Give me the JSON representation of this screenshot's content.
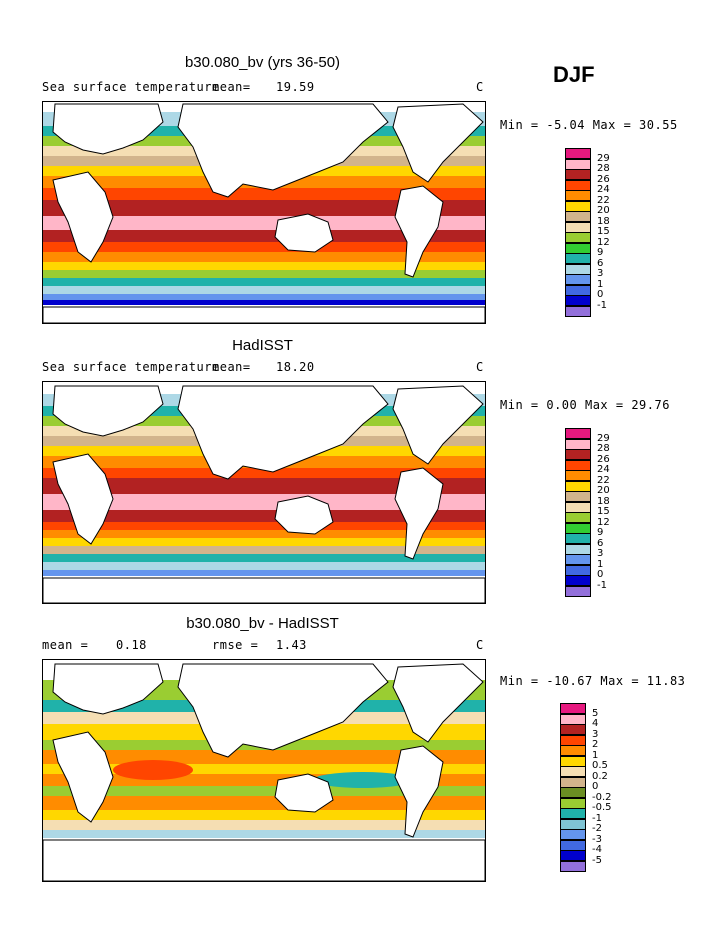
{
  "season": "DJF",
  "panels": [
    {
      "title": "b30.080_bv (yrs 36-50)",
      "left_label": "Sea surface temperature",
      "mean_label": "mean=",
      "mean_value": "19.59",
      "units": "C",
      "minmax_text": "Min =   -5.04 Max =   30.55",
      "levels": [
        "29",
        "28",
        "26",
        "24",
        "22",
        "20",
        "18",
        "15",
        "12",
        "9",
        "6",
        "3",
        "1",
        "0",
        "-1"
      ],
      "colors": [
        "#e6197f",
        "#ffb6c8",
        "#b22222",
        "#ff4500",
        "#ff8c00",
        "#ffd700",
        "#d2b48c",
        "#f5deb3",
        "#9acd32",
        "#32cd32",
        "#20b2aa",
        "#add8e6",
        "#6495ed",
        "#4169e1",
        "#0000cd",
        "#9370db"
      ]
    },
    {
      "title": "HadISST",
      "left_label": "Sea surface temperature",
      "mean_label": "mean=",
      "mean_value": "18.20",
      "units": "C",
      "minmax_text": "Min =    0.00 Max =   29.76",
      "levels": [
        "29",
        "28",
        "26",
        "24",
        "22",
        "20",
        "18",
        "15",
        "12",
        "9",
        "6",
        "3",
        "1",
        "0",
        "-1"
      ],
      "colors": [
        "#e6197f",
        "#ffb6c8",
        "#b22222",
        "#ff4500",
        "#ff8c00",
        "#ffd700",
        "#d2b48c",
        "#f5deb3",
        "#9acd32",
        "#32cd32",
        "#20b2aa",
        "#add8e6",
        "#6495ed",
        "#4169e1",
        "#0000cd",
        "#9370db"
      ]
    },
    {
      "title": "b30.080_bv - HadISST",
      "left_label": "mean =",
      "mean_label": "",
      "mean_value": "0.18",
      "rmse_label": "rmse =",
      "rmse_value": "1.43",
      "units": "C",
      "minmax_text": "Min = -10.67 Max =   11.83",
      "levels": [
        "5",
        "4",
        "3",
        "2",
        "1",
        "0.5",
        "0.2",
        "0",
        "-0.2",
        "-0.5",
        "-1",
        "-2",
        "-3",
        "-4",
        "-5"
      ],
      "colors": [
        "#e6197f",
        "#ffb6c8",
        "#b22222",
        "#ff4500",
        "#ff8c00",
        "#ffd700",
        "#f5deb3",
        "#d2b48c",
        "#6b8e23",
        "#9acd32",
        "#20b2aa",
        "#7fc4d4",
        "#6495ed",
        "#4169e1",
        "#0000cd",
        "#9370db"
      ]
    }
  ]
}
